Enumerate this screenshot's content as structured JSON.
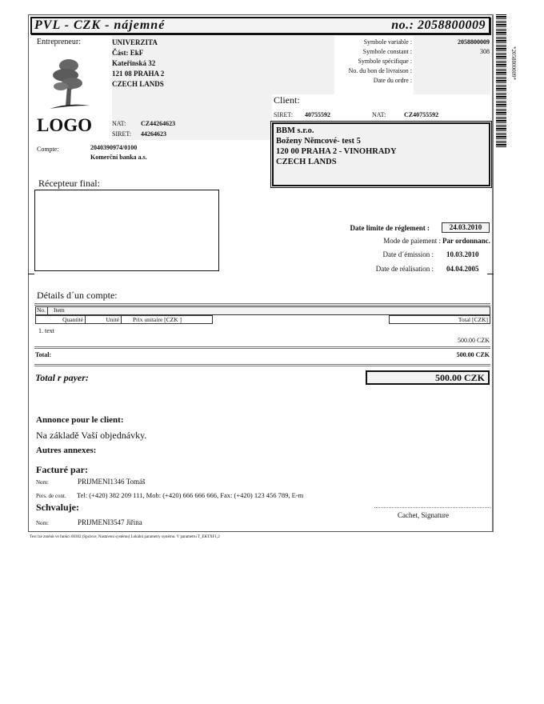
{
  "header": {
    "title": "PVL - CZK - nájemné",
    "number": "no.: 2058800009"
  },
  "barcode": {
    "text": "*2058800009*"
  },
  "entrepreneur": {
    "label": "Entrepreneur:",
    "lines": [
      "UNIVERZITA",
      "Část: EkF",
      "Kateřinská 32",
      "121 08 PRAHA 2",
      "CZECH LANDS"
    ],
    "logo_text": "LOGO",
    "nat_label": "NAT:",
    "nat": "CZ44264623",
    "siret_label": "SIRET:",
    "siret": "44264623",
    "compte_label": "Compte:",
    "compte": "2040390974/0100",
    "bank": "Komerční banka a.s."
  },
  "symbols": [
    {
      "label": "Symbole variable :",
      "value": "2058800009"
    },
    {
      "label": "Symbole constant :",
      "value": "308"
    },
    {
      "label": "Symbole spécifique :",
      "value": ""
    },
    {
      "label": "No. du bon de livraison :",
      "value": ""
    },
    {
      "label": "Date du ordre :",
      "value": ""
    }
  ],
  "client": {
    "label": "Client:",
    "siret_label": "SIRET:",
    "siret": "40755592",
    "nat_label": "NAT:",
    "nat": "CZ40755592",
    "lines": [
      "BBM s.r.o.",
      "Boženy Němcové- test 5",
      "120 00 PRAHA 2 - VINOHRADY",
      "CZECH LANDS"
    ]
  },
  "recepteur": {
    "label": "Récepteur final:"
  },
  "dates": {
    "due_label": "Date limite de réglement :",
    "due": "24.03.2010",
    "mode_label": "Mode de paiement :",
    "mode": "Par ordonnanc.",
    "emission_label": "Date d´émission :",
    "emission": "10.03.2010",
    "realisation_label": "Date de réalisation :",
    "realisation": "04.04.2005"
  },
  "details": {
    "label": "Détails d´un compte:",
    "headers": {
      "no": "No.",
      "item": "Item",
      "qty": "Quantité",
      "unit": "Unité",
      "price": "Prix unitaire [CZK ]",
      "total": "Total [CZK]"
    },
    "items": [
      {
        "line": "1. text",
        "total": "500.00 CZK"
      }
    ],
    "total_label": "Total:",
    "total": "500.00 CZK",
    "pay_label": "Total r payer:",
    "pay": "500.00 CZK"
  },
  "notes": {
    "annonce_label": "Annonce pour le client:",
    "annonce": "Na základě  Vaší objednávky.",
    "annexes_label": "Autres annexes:",
    "facture_label": "Facturé par:",
    "nom_label": "Nom:",
    "facture_name": "PRIJMENI1346 Tomáš",
    "contact_label": "Pers. de cont.",
    "contact": "Tel: (+420) 382 209 111, Mob: (+420) 666 666 666, Fax: (+420) 123 456 789, E-m",
    "schvaluje_label": "Schvaluje:",
    "schvaluje_name": "PRIJMENI3547 Jiřina",
    "signature": "Cachet, Signature"
  },
  "footer": "Text lze změnit ve funkci 00302 (Správce, Nastavení systému) Lokální parametry systému. V parametru T_EKTXF1,2"
}
